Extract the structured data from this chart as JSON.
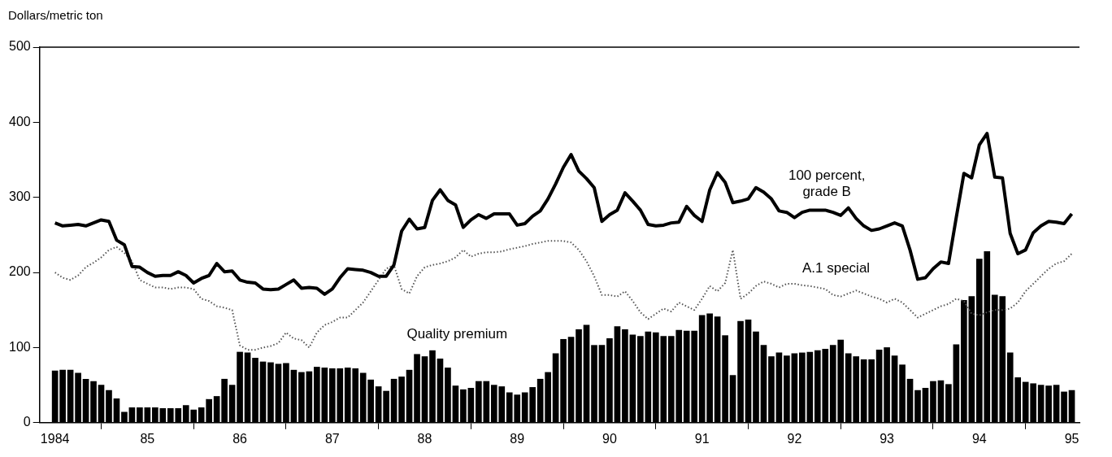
{
  "chart_data": {
    "type": "line",
    "ylabel": "Dollars/metric ton",
    "x": [
      "1984-01",
      "1984-02",
      "1984-03",
      "1984-04",
      "1984-05",
      "1984-06",
      "1984-07",
      "1984-08",
      "1984-09",
      "1984-10",
      "1984-11",
      "1984-12",
      "1985-01",
      "1985-02",
      "1985-03",
      "1985-04",
      "1985-05",
      "1985-06",
      "1985-07",
      "1985-08",
      "1985-09",
      "1985-10",
      "1985-11",
      "1985-12",
      "1986-01",
      "1986-02",
      "1986-03",
      "1986-04",
      "1986-05",
      "1986-06",
      "1986-07",
      "1986-08",
      "1986-09",
      "1986-10",
      "1986-11",
      "1986-12",
      "1987-01",
      "1987-02",
      "1987-03",
      "1987-04",
      "1987-05",
      "1987-06",
      "1987-07",
      "1987-08",
      "1987-09",
      "1987-10",
      "1987-11",
      "1987-12",
      "1988-01",
      "1988-02",
      "1988-03",
      "1988-04",
      "1988-05",
      "1988-06",
      "1988-07",
      "1988-08",
      "1988-09",
      "1988-10",
      "1988-11",
      "1988-12",
      "1989-01",
      "1989-02",
      "1989-03",
      "1989-04",
      "1989-05",
      "1989-06",
      "1989-07",
      "1989-08",
      "1989-09",
      "1989-10",
      "1989-11",
      "1989-12",
      "1990-01",
      "1990-02",
      "1990-03",
      "1990-04",
      "1990-05",
      "1990-06",
      "1990-07",
      "1990-08",
      "1990-09",
      "1990-10",
      "1990-11",
      "1990-12",
      "1991-01",
      "1991-02",
      "1991-03",
      "1991-04",
      "1991-05",
      "1991-06",
      "1991-07",
      "1991-08",
      "1991-09",
      "1991-10",
      "1991-11",
      "1991-12",
      "1992-01",
      "1992-02",
      "1992-03",
      "1992-04",
      "1992-05",
      "1992-06",
      "1992-07",
      "1992-08",
      "1992-09",
      "1992-10",
      "1992-11",
      "1992-12",
      "1993-01",
      "1993-02",
      "1993-03",
      "1993-04",
      "1993-05",
      "1993-06",
      "1993-07",
      "1993-08",
      "1993-09",
      "1993-10",
      "1993-11",
      "1993-12",
      "1994-01",
      "1994-02",
      "1994-03",
      "1994-04",
      "1994-05",
      "1994-06",
      "1994-07",
      "1994-08",
      "1994-09",
      "1994-10",
      "1994-11",
      "1994-12",
      "1995-01"
    ],
    "series": [
      {
        "name": "100 percent, grade B",
        "color": "#000000",
        "line_style": "solid",
        "values": [
          266,
          262,
          263,
          264,
          262,
          266,
          270,
          268,
          243,
          237,
          208,
          207,
          200,
          195,
          196,
          196,
          201,
          196,
          186,
          192,
          196,
          212,
          201,
          202,
          190,
          187,
          186,
          178,
          177,
          178,
          184,
          190,
          179,
          180,
          179,
          171,
          178,
          193,
          205,
          204,
          203,
          200,
          195,
          195,
          210,
          255,
          271,
          258,
          260,
          296,
          310,
          296,
          290,
          260,
          270,
          277,
          272,
          278,
          278,
          278,
          263,
          265,
          275,
          282,
          298,
          318,
          340,
          357,
          335,
          325,
          313,
          268,
          277,
          283,
          306,
          295,
          283,
          264,
          262,
          263,
          266,
          267,
          288,
          276,
          268,
          310,
          333,
          320,
          293,
          295,
          298,
          313,
          307,
          298,
          282,
          280,
          273,
          280,
          283,
          283,
          283,
          280,
          276,
          286,
          272,
          262,
          256,
          258,
          262,
          266,
          262,
          230,
          191,
          193,
          205,
          214,
          212,
          273,
          332,
          326,
          370,
          385,
          327,
          326,
          252,
          225,
          230,
          253,
          262,
          268,
          267,
          265,
          278
        ]
      },
      {
        "name": "A.1 special",
        "color": "#555555",
        "line_style": "dotted",
        "values": [
          200,
          193,
          190,
          196,
          207,
          213,
          220,
          230,
          234,
          226,
          215,
          190,
          185,
          180,
          180,
          178,
          180,
          180,
          178,
          165,
          162,
          155,
          153,
          150,
          103,
          97,
          97,
          100,
          102,
          106,
          120,
          112,
          110,
          100,
          120,
          130,
          134,
          140,
          140,
          150,
          160,
          175,
          190,
          205,
          210,
          178,
          172,
          195,
          207,
          210,
          212,
          215,
          220,
          230,
          221,
          225,
          227,
          227,
          228,
          231,
          233,
          235,
          238,
          240,
          242,
          242,
          242,
          240,
          230,
          215,
          195,
          170,
          170,
          168,
          175,
          162,
          147,
          138,
          145,
          152,
          148,
          160,
          155,
          150,
          165,
          182,
          175,
          186,
          230,
          165,
          172,
          182,
          188,
          185,
          180,
          185,
          185,
          183,
          182,
          180,
          178,
          170,
          168,
          172,
          176,
          172,
          168,
          165,
          160,
          165,
          160,
          150,
          140,
          145,
          150,
          155,
          158,
          165,
          162,
          145,
          143,
          147,
          150,
          150,
          152,
          160,
          175,
          185,
          195,
          205,
          212,
          215,
          225
        ]
      },
      {
        "name": "Quality premium",
        "type": "bar",
        "color": "#000000",
        "values": [
          69,
          70,
          70,
          66,
          58,
          55,
          50,
          43,
          32,
          14,
          20,
          20,
          20,
          20,
          19,
          19,
          19,
          23,
          17,
          20,
          31,
          35,
          58,
          50,
          94,
          93,
          86,
          81,
          80,
          78,
          79,
          70,
          67,
          68,
          74,
          73,
          72,
          72,
          73,
          72,
          66,
          57,
          48,
          42,
          58,
          61,
          70,
          91,
          88,
          96,
          85,
          73,
          49,
          44,
          46,
          55,
          55,
          50,
          48,
          40,
          37,
          40,
          47,
          58,
          67,
          92,
          111,
          114,
          124,
          130,
          103,
          103,
          112,
          128,
          124,
          117,
          115,
          121,
          120,
          115,
          115,
          123,
          122,
          122,
          143,
          145,
          141,
          116,
          63,
          135,
          137,
          121,
          103,
          88,
          93,
          89,
          92,
          93,
          94,
          96,
          98,
          103,
          110,
          92,
          88,
          84,
          84,
          97,
          100,
          89,
          77,
          58,
          43,
          46,
          55,
          56,
          51,
          104,
          163,
          168,
          218,
          228,
          170,
          168,
          93,
          60,
          54,
          52,
          50,
          49,
          50,
          41,
          43
        ]
      }
    ],
    "xlim": [
      "1983-11",
      "1995-02"
    ],
    "xticks": [
      {
        "value": "1984",
        "label": "1984"
      },
      {
        "value": "1985",
        "label": "85"
      },
      {
        "value": "1986",
        "label": "86"
      },
      {
        "value": "1987",
        "label": "87"
      },
      {
        "value": "1988",
        "label": "88"
      },
      {
        "value": "1989",
        "label": "89"
      },
      {
        "value": "1990",
        "label": "90"
      },
      {
        "value": "1991",
        "label": "91"
      },
      {
        "value": "1992",
        "label": "92"
      },
      {
        "value": "1993",
        "label": "93"
      },
      {
        "value": "1994",
        "label": "94"
      },
      {
        "value": "1995",
        "label": "95"
      }
    ],
    "ylim": [
      0,
      500
    ],
    "yticks": [
      0,
      100,
      200,
      300,
      400,
      500
    ],
    "grid": false,
    "legend": false
  }
}
